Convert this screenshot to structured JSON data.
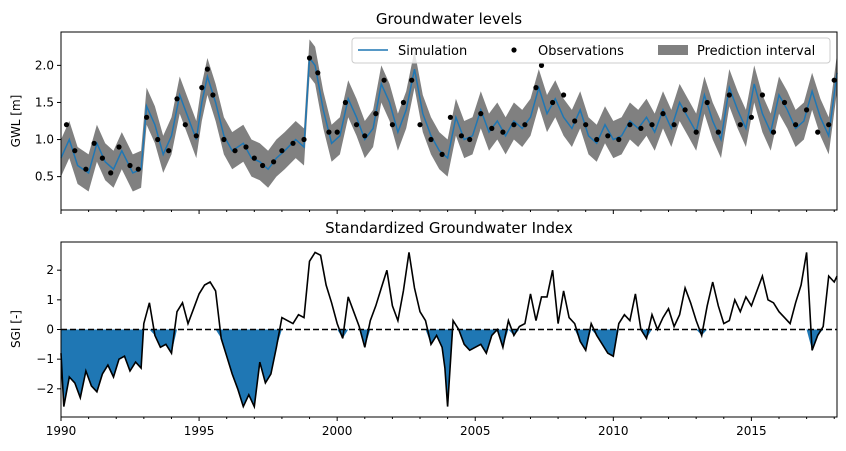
{
  "chart_data": [
    {
      "type": "line",
      "title": "Groundwater levels",
      "ylabel": "GWL [m]",
      "xlim": [
        1990,
        2018.1
      ],
      "ylim": [
        0.05,
        2.45
      ],
      "yticks": [
        "0.5",
        "1.0",
        "1.5",
        "2.0"
      ],
      "grid": false,
      "legend_position": "top-right",
      "series": [
        {
          "name": "Simulation",
          "kind": "line",
          "color": "#1f77b4",
          "x": [
            1990.0,
            1990.3,
            1990.6,
            1991.0,
            1991.3,
            1991.6,
            1991.9,
            1992.2,
            1992.6,
            1992.9,
            1993.1,
            1993.4,
            1993.7,
            1994.0,
            1994.3,
            1994.6,
            1994.9,
            1995.1,
            1995.3,
            1995.6,
            1995.9,
            1996.2,
            1996.6,
            1996.9,
            1997.2,
            1997.5,
            1997.8,
            1998.1,
            1998.5,
            1998.8,
            1999.0,
            1999.2,
            1999.5,
            1999.8,
            2000.1,
            2000.4,
            2000.7,
            2001.0,
            2001.3,
            2001.6,
            2001.9,
            2002.2,
            2002.5,
            2002.8,
            2003.1,
            2003.4,
            2003.7,
            2004.0,
            2004.3,
            2004.6,
            2004.9,
            2005.2,
            2005.5,
            2005.8,
            2006.1,
            2006.4,
            2006.7,
            2007.0,
            2007.3,
            2007.6,
            2007.9,
            2008.2,
            2008.5,
            2008.8,
            2009.1,
            2009.4,
            2009.7,
            2010.0,
            2010.3,
            2010.6,
            2010.9,
            2011.2,
            2011.5,
            2011.8,
            2012.1,
            2012.4,
            2012.7,
            2013.0,
            2013.3,
            2013.6,
            2013.9,
            2014.2,
            2014.5,
            2014.8,
            2015.1,
            2015.4,
            2015.7,
            2016.0,
            2016.3,
            2016.6,
            2016.9,
            2017.2,
            2017.5,
            2017.8,
            2018.1
          ],
          "y": [
            0.75,
            1.0,
            0.65,
            0.55,
            0.95,
            0.7,
            0.6,
            0.85,
            0.55,
            0.6,
            1.45,
            1.2,
            0.8,
            1.05,
            1.6,
            1.3,
            1.0,
            1.5,
            1.85,
            1.5,
            1.05,
            0.85,
            0.95,
            0.75,
            0.7,
            0.6,
            0.75,
            0.85,
            1.0,
            0.9,
            2.1,
            2.0,
            1.4,
            0.95,
            1.05,
            1.55,
            1.3,
            1.0,
            1.15,
            1.75,
            1.5,
            1.1,
            1.4,
            1.95,
            1.35,
            1.05,
            0.85,
            0.75,
            1.3,
            1.0,
            1.05,
            1.4,
            1.1,
            1.25,
            1.05,
            1.25,
            1.15,
            1.3,
            1.7,
            1.35,
            1.55,
            1.3,
            1.15,
            1.4,
            1.05,
            0.95,
            1.2,
            1.0,
            1.05,
            1.25,
            1.15,
            1.3,
            1.1,
            1.4,
            1.15,
            1.5,
            1.3,
            1.1,
            1.6,
            1.25,
            1.0,
            1.7,
            1.4,
            1.15,
            1.75,
            1.35,
            1.1,
            1.6,
            1.4,
            1.15,
            1.25,
            1.65,
            1.3,
            1.05,
            1.9
          ]
        },
        {
          "name": "Observations",
          "kind": "scatter",
          "color": "#000000",
          "x": [
            1990.2,
            1990.5,
            1990.9,
            1991.2,
            1991.5,
            1991.8,
            1992.1,
            1992.5,
            1992.8,
            1993.1,
            1993.5,
            1993.9,
            1994.2,
            1994.5,
            1994.9,
            1995.1,
            1995.3,
            1995.5,
            1995.9,
            1996.3,
            1996.7,
            1997.0,
            1997.3,
            1997.7,
            1998.0,
            1998.4,
            1998.8,
            1999.0,
            1999.3,
            1999.7,
            2000.0,
            2000.3,
            2000.7,
            2001.0,
            2001.4,
            2001.7,
            2002.0,
            2002.4,
            2002.7,
            2003.0,
            2003.4,
            2003.8,
            2004.1,
            2004.5,
            2004.8,
            2005.2,
            2005.6,
            2006.0,
            2006.4,
            2006.8,
            2007.2,
            2007.4,
            2007.8,
            2008.2,
            2008.6,
            2009.0,
            2009.4,
            2009.8,
            2010.2,
            2010.6,
            2011.0,
            2011.4,
            2011.8,
            2012.2,
            2012.6,
            2013.0,
            2013.4,
            2013.8,
            2014.2,
            2014.6,
            2015.0,
            2015.4,
            2015.8,
            2016.2,
            2016.6,
            2017.0,
            2017.4,
            2017.8,
            2018.0
          ],
          "y": [
            1.2,
            0.85,
            0.6,
            0.95,
            0.75,
            0.55,
            0.9,
            0.65,
            0.6,
            1.3,
            1.0,
            0.85,
            1.55,
            1.2,
            1.05,
            1.7,
            1.95,
            1.6,
            1.0,
            0.85,
            0.9,
            0.75,
            0.65,
            0.7,
            0.85,
            0.95,
            1.0,
            2.1,
            1.9,
            1.1,
            1.1,
            1.5,
            1.2,
            1.05,
            1.35,
            1.8,
            1.2,
            1.5,
            1.8,
            1.2,
            1.0,
            0.8,
            1.3,
            1.05,
            1.0,
            1.35,
            1.15,
            1.1,
            1.2,
            1.2,
            1.7,
            2.0,
            1.5,
            1.6,
            1.25,
            1.2,
            1.0,
            1.05,
            1.0,
            1.2,
            1.15,
            1.2,
            1.35,
            1.2,
            1.4,
            1.1,
            1.5,
            1.1,
            1.6,
            1.2,
            1.3,
            1.6,
            1.1,
            1.5,
            1.2,
            1.4,
            1.1,
            1.2,
            1.8
          ]
        },
        {
          "name": "Prediction interval",
          "kind": "band",
          "color": "#808080",
          "half_width": 0.25
        }
      ]
    },
    {
      "type": "line",
      "title": "Standardized Groundwater Index",
      "xlabel": "",
      "ylabel": "SGI [-]",
      "xlim": [
        1990,
        2018.1
      ],
      "ylim": [
        -2.95,
        2.95
      ],
      "yticks": [
        "−2",
        "−1",
        "0",
        "1",
        "2"
      ],
      "xticks": [
        "1990",
        "1995",
        "2000",
        "2005",
        "2010",
        "2015"
      ],
      "baseline": 0,
      "fill_color": "#1f77b4",
      "line_color": "#000000",
      "x": [
        1990.0,
        1990.1,
        1990.3,
        1990.5,
        1990.7,
        1990.9,
        1991.1,
        1991.3,
        1991.5,
        1991.7,
        1991.9,
        1992.1,
        1992.3,
        1992.5,
        1992.7,
        1992.9,
        1993.0,
        1993.2,
        1993.4,
        1993.6,
        1993.8,
        1994.0,
        1994.2,
        1994.4,
        1994.6,
        1994.8,
        1995.0,
        1995.2,
        1995.4,
        1995.6,
        1995.8,
        1996.0,
        1996.2,
        1996.4,
        1996.6,
        1996.8,
        1997.0,
        1997.2,
        1997.4,
        1997.6,
        1997.8,
        1998.0,
        1998.2,
        1998.4,
        1998.6,
        1998.8,
        1999.0,
        1999.2,
        1999.4,
        1999.6,
        1999.8,
        2000.0,
        2000.2,
        2000.4,
        2000.6,
        2000.8,
        2001.0,
        2001.2,
        2001.4,
        2001.6,
        2001.8,
        2002.0,
        2002.2,
        2002.4,
        2002.6,
        2002.8,
        2003.0,
        2003.2,
        2003.4,
        2003.6,
        2003.8,
        2003.9,
        2004.0,
        2004.2,
        2004.4,
        2004.6,
        2004.8,
        2005.0,
        2005.2,
        2005.4,
        2005.6,
        2005.8,
        2006.0,
        2006.2,
        2006.4,
        2006.6,
        2006.8,
        2007.0,
        2007.2,
        2007.4,
        2007.6,
        2007.8,
        2008.0,
        2008.2,
        2008.4,
        2008.6,
        2008.8,
        2009.0,
        2009.2,
        2009.4,
        2009.6,
        2009.8,
        2010.0,
        2010.2,
        2010.4,
        2010.6,
        2010.8,
        2011.0,
        2011.2,
        2011.4,
        2011.6,
        2011.8,
        2012.0,
        2012.2,
        2012.4,
        2012.6,
        2012.8,
        2013.0,
        2013.2,
        2013.4,
        2013.6,
        2013.8,
        2014.0,
        2014.2,
        2014.4,
        2014.6,
        2014.8,
        2015.0,
        2015.2,
        2015.4,
        2015.6,
        2015.8,
        2016.0,
        2016.2,
        2016.4,
        2016.6,
        2016.8,
        2017.0,
        2017.2,
        2017.4,
        2017.6,
        2017.8,
        2018.0,
        2018.1
      ],
      "y": [
        -0.8,
        -2.6,
        -1.6,
        -1.8,
        -2.3,
        -1.4,
        -1.9,
        -2.1,
        -1.5,
        -1.2,
        -1.6,
        -1.0,
        -0.9,
        -1.4,
        -1.1,
        -1.3,
        0.2,
        0.9,
        -0.2,
        -0.6,
        -0.5,
        -0.8,
        0.6,
        0.9,
        0.2,
        0.7,
        1.2,
        1.5,
        1.6,
        1.3,
        -0.3,
        -0.9,
        -1.5,
        -2.0,
        -2.6,
        -2.2,
        -2.6,
        -1.1,
        -1.8,
        -1.5,
        -0.6,
        0.4,
        0.3,
        0.2,
        0.5,
        0.4,
        2.3,
        2.6,
        2.5,
        1.5,
        0.9,
        0.2,
        -0.3,
        1.1,
        0.6,
        0.1,
        -0.6,
        0.3,
        0.8,
        1.4,
        2.0,
        0.8,
        0.3,
        1.3,
        2.6,
        1.4,
        0.6,
        0.3,
        -0.5,
        -0.2,
        -0.6,
        -1.3,
        -2.6,
        0.3,
        0.0,
        -0.5,
        -0.7,
        -0.6,
        -0.5,
        -0.8,
        -0.2,
        0.0,
        -0.6,
        0.3,
        -0.2,
        0.1,
        0.2,
        1.2,
        0.3,
        1.1,
        1.1,
        2.0,
        0.2,
        1.3,
        0.4,
        0.2,
        -0.4,
        -0.7,
        0.2,
        -0.2,
        -0.5,
        -0.8,
        -0.9,
        0.2,
        0.5,
        0.3,
        1.2,
        0.0,
        -0.3,
        0.5,
        0.0,
        0.4,
        0.7,
        0.1,
        0.5,
        1.4,
        0.9,
        0.3,
        -0.2,
        0.8,
        1.6,
        0.8,
        0.2,
        0.3,
        1.0,
        0.6,
        1.1,
        0.8,
        1.3,
        1.8,
        1.0,
        0.9,
        0.6,
        0.4,
        0.2,
        0.9,
        1.5,
        2.6,
        -0.7,
        -0.2,
        0.1,
        1.8,
        1.6,
        1.8
      ]
    }
  ]
}
